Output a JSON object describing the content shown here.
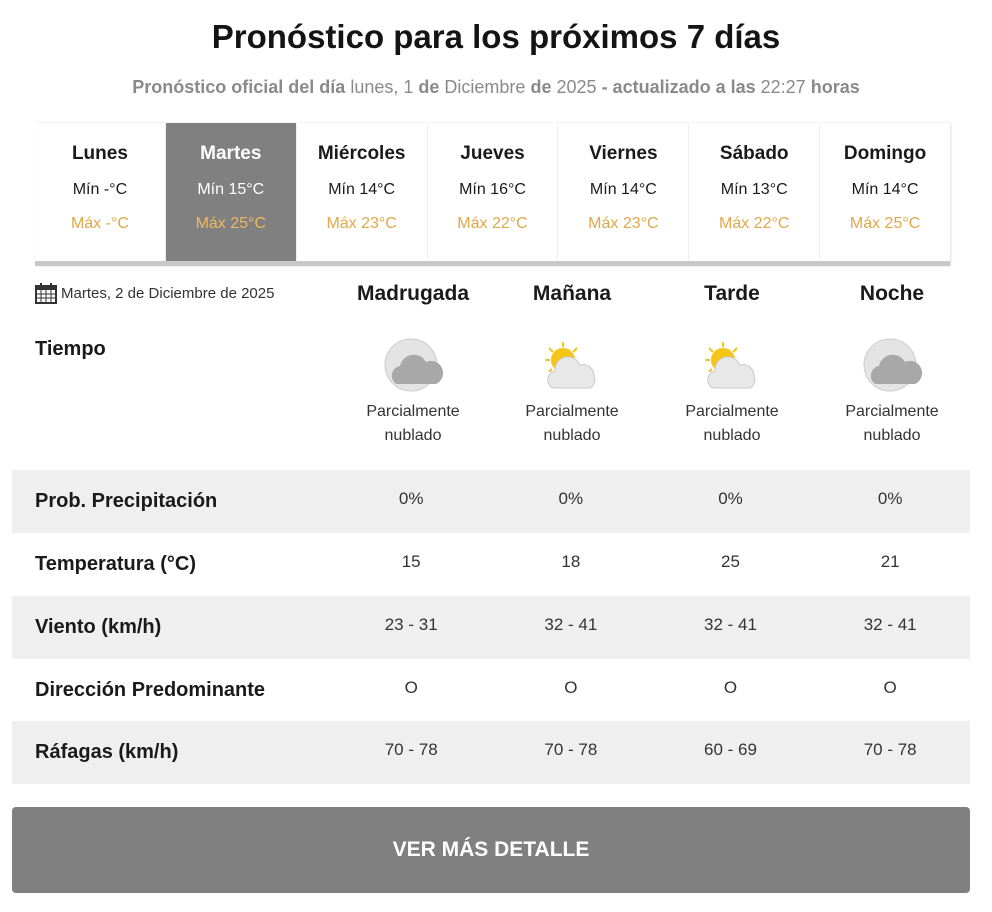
{
  "header": {
    "title": "Pronóstico para los próximos 7 días",
    "subtitle": {
      "p1": "Pronóstico oficial del día",
      "day": "lunes, 1",
      "p2": "de",
      "month": "Diciembre",
      "p3": "de",
      "year": "2025",
      "p4": "- actualizado a las",
      "time": "22:27",
      "p5": "horas"
    }
  },
  "days": [
    {
      "name": "Lunes",
      "min": "Mín -°C",
      "max": "Máx -°C"
    },
    {
      "name": "Martes",
      "min": "Mín 15°C",
      "max": "Máx 25°C"
    },
    {
      "name": "Miércoles",
      "min": "Mín 14°C",
      "max": "Máx 23°C"
    },
    {
      "name": "Jueves",
      "min": "Mín 16°C",
      "max": "Máx 22°C"
    },
    {
      "name": "Viernes",
      "min": "Mín 14°C",
      "max": "Máx 23°C"
    },
    {
      "name": "Sábado",
      "min": "Mín 13°C",
      "max": "Máx 22°C"
    },
    {
      "name": "Domingo",
      "min": "Mín 14°C",
      "max": "Máx 25°C"
    }
  ],
  "detail": {
    "date": "Martes, 2 de Diciembre de 2025",
    "periods": [
      "Madrugada",
      "Mañana",
      "Tarde",
      "Noche"
    ],
    "tiempo_label": "Tiempo",
    "weather": [
      {
        "icon": "moon-cloud-icon",
        "l1": "Parcialmente",
        "l2": "nublado"
      },
      {
        "icon": "sun-cloud-icon",
        "l1": "Parcialmente",
        "l2": "nublado"
      },
      {
        "icon": "sun-cloud-icon",
        "l1": "Parcialmente",
        "l2": "nublado"
      },
      {
        "icon": "moon-cloud-icon",
        "l1": "Parcialmente",
        "l2": "nublado"
      }
    ],
    "rows": [
      {
        "label": "Prob. Precipitación",
        "values": [
          "0%",
          "0%",
          "0%",
          "0%"
        ]
      },
      {
        "label": "Temperatura (°C)",
        "values": [
          "15",
          "18",
          "25",
          "21"
        ]
      },
      {
        "label": "Viento (km/h)",
        "values": [
          "23 - 31",
          "32 - 41",
          "32 - 41",
          "32 - 41"
        ]
      },
      {
        "label": "Dirección Predominante",
        "values": [
          "O",
          "O",
          "O",
          "O"
        ]
      },
      {
        "label": "Ráfagas (km/h)",
        "values": [
          "70 - 78",
          "70 - 78",
          "60 - 69",
          "70 - 78"
        ]
      }
    ]
  },
  "button": {
    "label": "VER MÁS DETALLE"
  },
  "colors": {
    "accent_gray": "#808080",
    "max_temp": "#e0a84a"
  }
}
